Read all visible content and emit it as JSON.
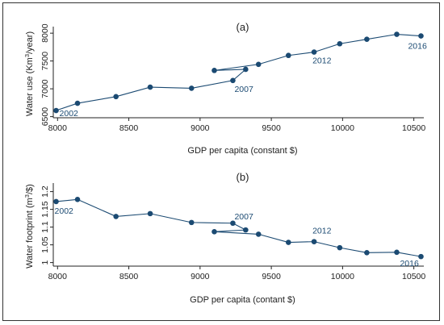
{
  "chart_data": [
    {
      "type": "line",
      "title": "(a)",
      "xlabel": "GDP per capita (constant $)",
      "ylabel": "Water use (Km",
      "ylabel_sup": "3",
      "ylabel_tail": "/year)",
      "xlim": [
        7970,
        10570
      ],
      "ylim": [
        6480,
        8060
      ],
      "xticks": [
        "8000",
        "8500",
        "9000",
        "9500",
        "10000",
        "10500"
      ],
      "yticks": [
        "6500",
        "7000",
        "7500",
        "8000"
      ],
      "color": "#1b4a72",
      "x": [
        7990,
        8140,
        8410,
        8650,
        8940,
        9230,
        9320,
        9100,
        9410,
        9620,
        9800,
        9980,
        10170,
        10380,
        10550
      ],
      "y": [
        6610,
        6740,
        6860,
        7030,
        7010,
        7150,
        7350,
        7330,
        7440,
        7600,
        7660,
        7810,
        7890,
        7980,
        7950
      ],
      "annotations": [
        {
          "text": "2002",
          "x": 7990,
          "y": 6610
        },
        {
          "text": "2007",
          "x": 9230,
          "y": 7150
        },
        {
          "text": "2012",
          "x": 9800,
          "y": 7660
        },
        {
          "text": "2016",
          "x": 10550,
          "y": 7950
        }
      ]
    },
    {
      "type": "line",
      "title": "(b)",
      "xlabel": "GDP per capita (contant $)",
      "ylabel": "Water footprint (m",
      "ylabel_sup": "3",
      "ylabel_tail": "/$)",
      "xlim": [
        7970,
        10570
      ],
      "ylim": [
        0.99,
        1.215
      ],
      "xticks": [
        "8000",
        "8500",
        "9000",
        "9500",
        "10000",
        "10500"
      ],
      "yticks": [
        "1",
        "1.05",
        "1.1",
        "1.15",
        "1.2"
      ],
      "color": "#1b4a72",
      "x": [
        7990,
        8140,
        8410,
        8650,
        8940,
        9230,
        9320,
        9100,
        9410,
        9620,
        9800,
        9980,
        10170,
        10380,
        10550
      ],
      "y": [
        1.172,
        1.178,
        1.13,
        1.138,
        1.113,
        1.111,
        1.092,
        1.087,
        1.08,
        1.057,
        1.059,
        1.042,
        1.028,
        1.029,
        1.017
      ],
      "annotations": [
        {
          "text": "2002",
          "x": 7990,
          "y": 1.172
        },
        {
          "text": "2007",
          "x": 9230,
          "y": 1.111
        },
        {
          "text": "2012",
          "x": 9800,
          "y": 1.059
        },
        {
          "text": "2016",
          "x": 10550,
          "y": 1.017
        }
      ]
    }
  ]
}
